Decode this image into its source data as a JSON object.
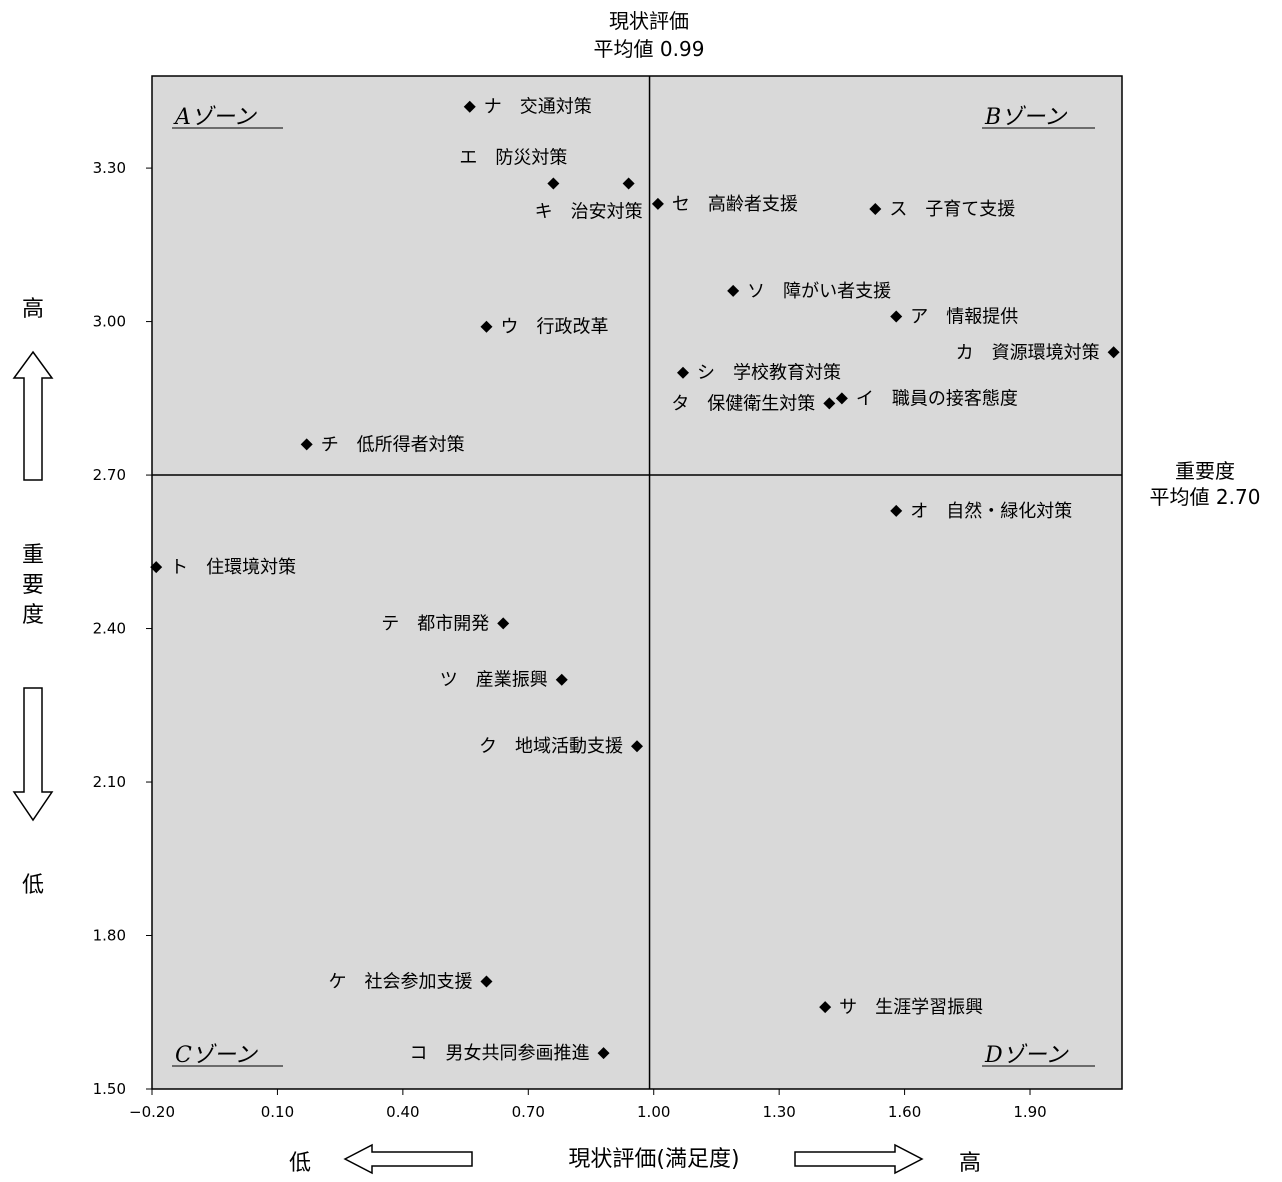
{
  "chart_data": {
    "type": "scatter",
    "x_axis": {
      "label": "現状評価(満足度)",
      "low_label": "低",
      "high_label": "高",
      "ticks": [
        "−0.20",
        "0.10",
        "0.40",
        "0.70",
        "1.00",
        "1.30",
        "1.60",
        "1.90"
      ]
    },
    "y_axis": {
      "label": "重要度",
      "high_label": "高",
      "low_label": "低",
      "ticks": [
        "1.50",
        "1.80",
        "2.10",
        "2.40",
        "2.70",
        "3.00",
        "3.30"
      ]
    },
    "mean_x": {
      "title": "現状評価",
      "value_label": "平均値 0.99",
      "value": 0.99
    },
    "mean_y": {
      "title": "重要度",
      "value_label": "平均値 2.70",
      "value": 2.7
    },
    "zones": [
      "Aゾーン",
      "Bゾーン",
      "Cゾーン",
      "Dゾーン"
    ],
    "points": [
      {
        "label": "ナ 交通対策",
        "x": 0.56,
        "y": 3.42
      },
      {
        "label": "エ 防災対策",
        "x": 0.76,
        "y": 3.27
      },
      {
        "label": "キ 治安対策",
        "x": 0.94,
        "y": 3.27
      },
      {
        "label": "セ 高齢者支援",
        "x": 1.01,
        "y": 3.23
      },
      {
        "label": "ス 子育て支援",
        "x": 1.53,
        "y": 3.22
      },
      {
        "label": "ソ 障がい者支援",
        "x": 1.19,
        "y": 3.06
      },
      {
        "label": "ア 情報提供",
        "x": 1.58,
        "y": 3.01
      },
      {
        "label": "ウ 行政改革",
        "x": 0.6,
        "y": 2.99
      },
      {
        "label": "カ 資源環境対策",
        "x": 2.1,
        "y": 2.94
      },
      {
        "label": "シ 学校教育対策",
        "x": 1.07,
        "y": 2.9
      },
      {
        "label": "イ 職員の接客態度",
        "x": 1.45,
        "y": 2.85
      },
      {
        "label": "タ 保健衛生対策",
        "x": 1.42,
        "y": 2.84
      },
      {
        "label": "チ 低所得者対策",
        "x": 0.17,
        "y": 2.76
      },
      {
        "label": "オ 自然・緑化対策",
        "x": 1.58,
        "y": 2.63
      },
      {
        "label": "ト 住環境対策",
        "x": -0.19,
        "y": 2.52
      },
      {
        "label": "テ 都市開発",
        "x": 0.64,
        "y": 2.41
      },
      {
        "label": "ツ 産業振興",
        "x": 0.78,
        "y": 2.3
      },
      {
        "label": "ク 地域活動支援",
        "x": 0.96,
        "y": 2.17
      },
      {
        "label": "ケ 社会参加支援",
        "x": 0.6,
        "y": 1.71
      },
      {
        "label": "サ 生涯学習振興",
        "x": 1.41,
        "y": 1.66
      },
      {
        "label": "コ 男女共同参画推進",
        "x": 0.88,
        "y": 1.57
      }
    ]
  }
}
